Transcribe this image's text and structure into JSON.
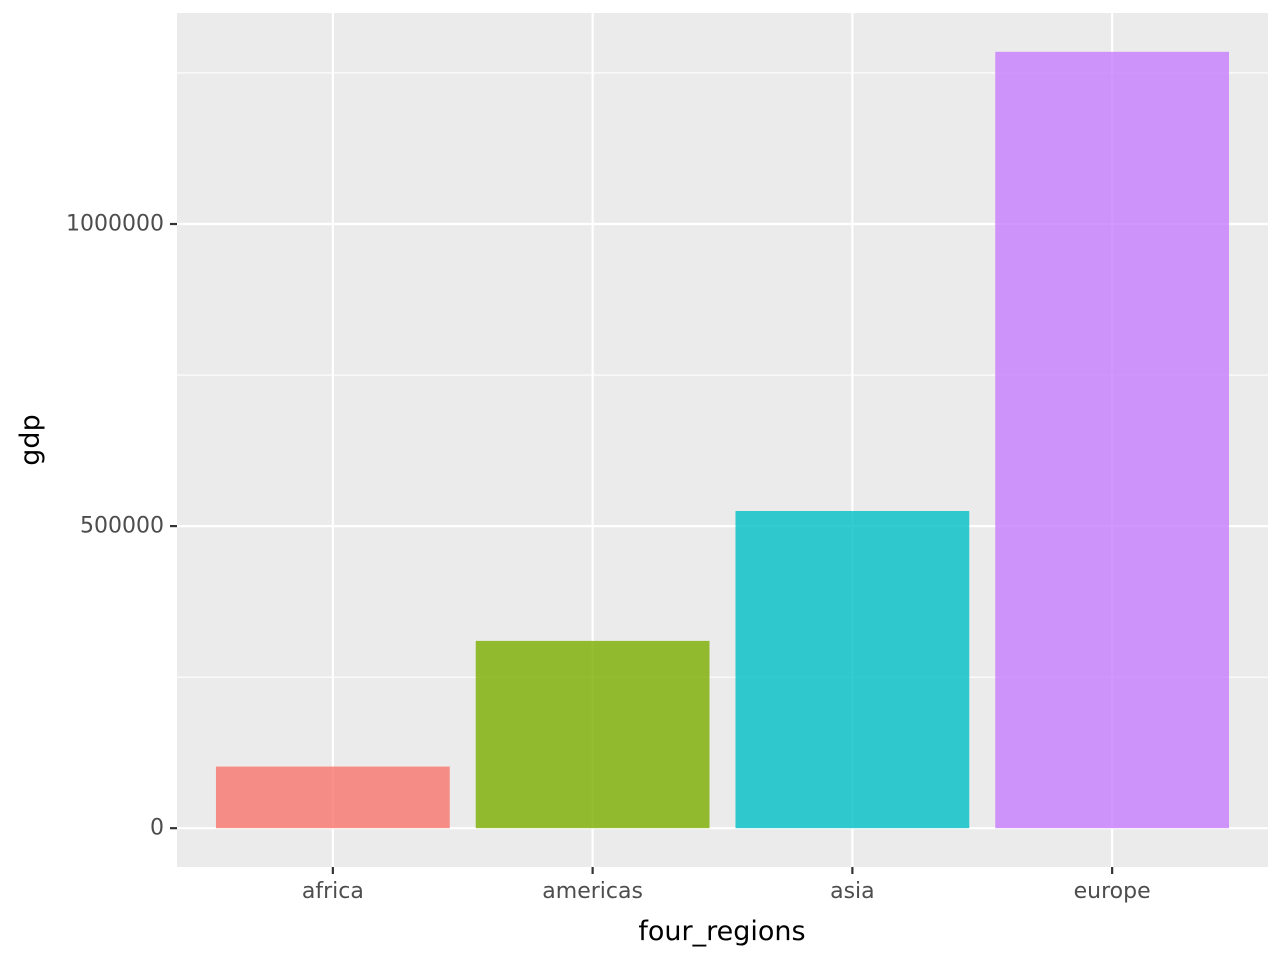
{
  "chart_data": {
    "type": "bar",
    "title": "",
    "xlabel": "four_regions",
    "ylabel": "gdp",
    "categories": [
      "africa",
      "americas",
      "asia",
      "europe"
    ],
    "values": [
      102000,
      310000,
      525000,
      1285000
    ],
    "colors": [
      "#F8766D",
      "#7CAE00",
      "#00BFC4",
      "#C77CFF"
    ],
    "bar_opacity": 0.8,
    "ylim": [
      -64250,
      1349250
    ],
    "y_major_ticks": [
      0,
      500000,
      1000000
    ],
    "y_major_tick_labels": [
      "0",
      "500000",
      "1000000"
    ],
    "y_minor_ticks": [
      250000,
      750000,
      1250000
    ],
    "grid": true,
    "legend": "none",
    "panel_background": "#EBEBEB",
    "grid_color": "#FFFFFF"
  }
}
